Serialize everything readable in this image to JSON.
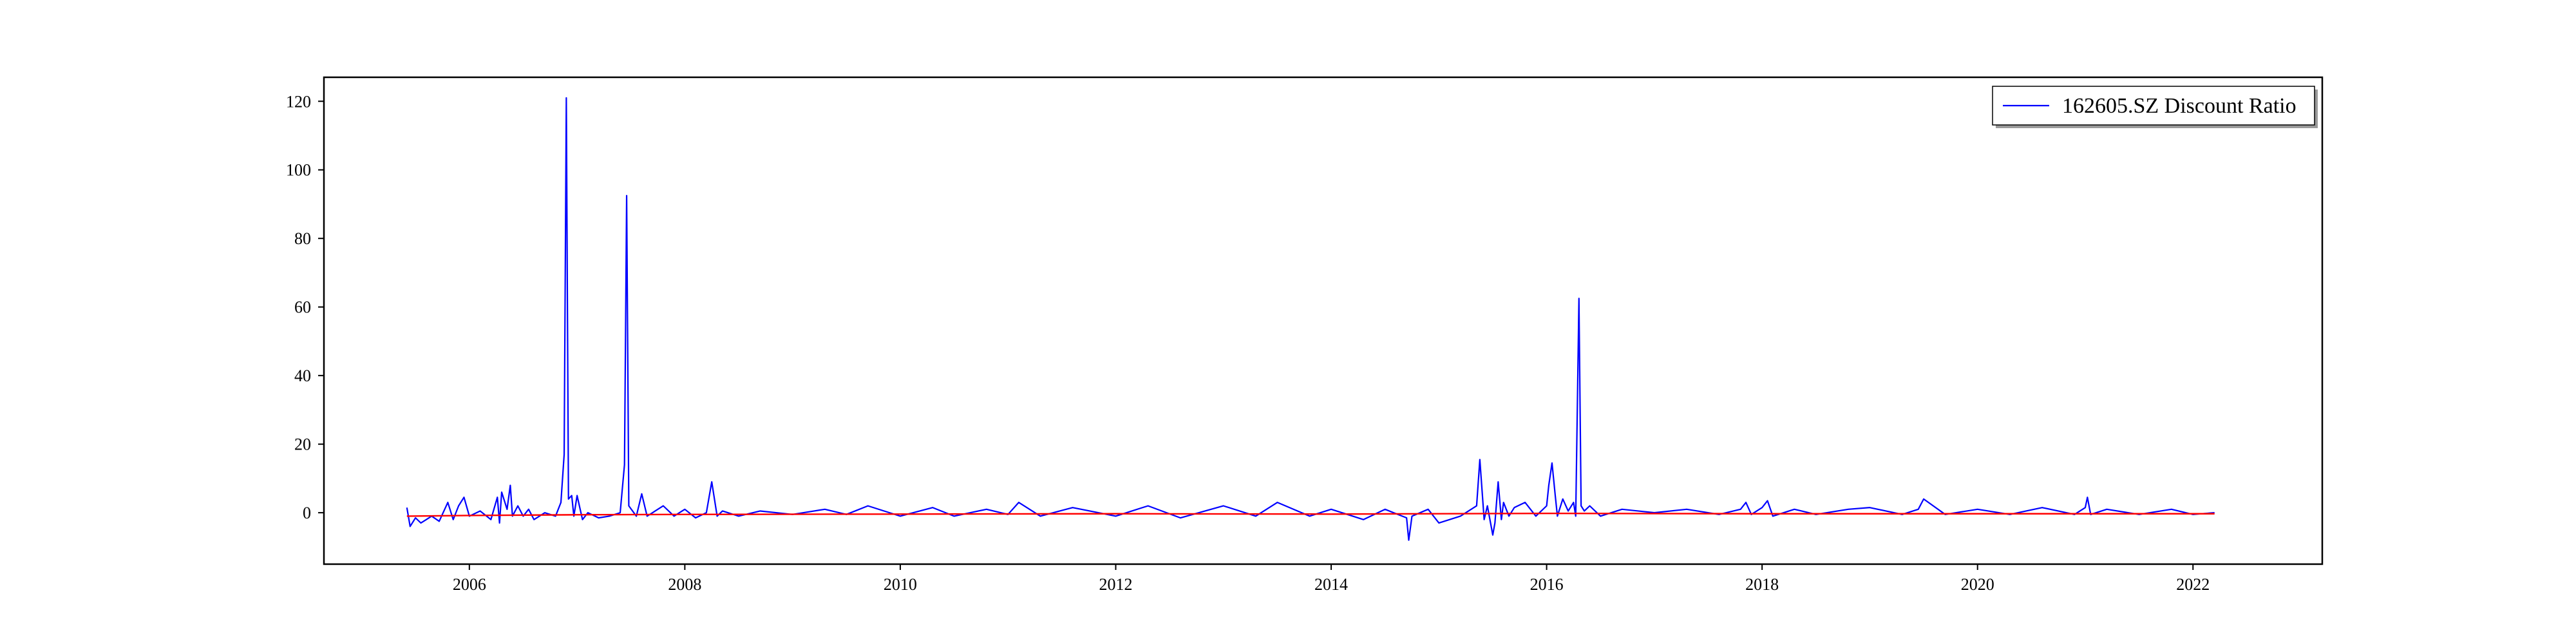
{
  "chart_data": {
    "type": "line",
    "title": "",
    "xlabel": "",
    "ylabel": "",
    "xlim": [
      2004.65,
      2023.2
    ],
    "ylim": [
      -15,
      127
    ],
    "x_ticks": [
      "2006",
      "2008",
      "2010",
      "2012",
      "2014",
      "2016",
      "2018",
      "2020",
      "2022"
    ],
    "y_ticks": [
      "0",
      "20",
      "40",
      "60",
      "80",
      "100",
      "120"
    ],
    "grid": false,
    "legend": {
      "placement": "top-right",
      "entries": [
        "162605.SZ Discount Ratio"
      ]
    },
    "series": [
      {
        "name": "162605.SZ Discount Ratio",
        "color": "#0000ff",
        "x": [
          2005.42,
          2005.45,
          2005.5,
          2005.55,
          2005.6,
          2005.65,
          2005.72,
          2005.8,
          2005.85,
          2005.9,
          2005.95,
          2006.0,
          2006.1,
          2006.2,
          2006.26,
          2006.28,
          2006.3,
          2006.35,
          2006.38,
          2006.4,
          2006.45,
          2006.5,
          2006.55,
          2006.6,
          2006.7,
          2006.8,
          2006.85,
          2006.88,
          2006.9,
          2006.92,
          2006.95,
          2006.97,
          2007.0,
          2007.05,
          2007.1,
          2007.2,
          2007.3,
          2007.4,
          2007.44,
          2007.46,
          2007.48,
          2007.55,
          2007.6,
          2007.65,
          2007.7,
          2007.8,
          2007.9,
          2008.0,
          2008.1,
          2008.2,
          2008.25,
          2008.3,
          2008.35,
          2008.5,
          2008.7,
          2009.0,
          2009.3,
          2009.5,
          2009.7,
          2010.0,
          2010.3,
          2010.5,
          2010.8,
          2011.0,
          2011.1,
          2011.3,
          2011.6,
          2012.0,
          2012.3,
          2012.6,
          2013.0,
          2013.3,
          2013.5,
          2013.8,
          2014.0,
          2014.3,
          2014.5,
          2014.7,
          2014.72,
          2014.75,
          2014.9,
          2015.0,
          2015.2,
          2015.35,
          2015.38,
          2015.42,
          2015.45,
          2015.5,
          2015.52,
          2015.55,
          2015.58,
          2015.6,
          2015.65,
          2015.7,
          2015.8,
          2015.9,
          2016.0,
          2016.02,
          2016.05,
          2016.08,
          2016.1,
          2016.15,
          2016.2,
          2016.25,
          2016.27,
          2016.3,
          2016.32,
          2016.35,
          2016.4,
          2016.5,
          2016.7,
          2017.0,
          2017.3,
          2017.6,
          2017.8,
          2017.85,
          2017.9,
          2018.0,
          2018.05,
          2018.1,
          2018.3,
          2018.5,
          2018.8,
          2019.0,
          2019.3,
          2019.45,
          2019.5,
          2019.7,
          2020.0,
          2020.3,
          2020.6,
          2020.9,
          2021.0,
          2021.02,
          2021.05,
          2021.2,
          2021.5,
          2021.8,
          2022.0,
          2022.2
        ],
        "values": [
          1.5,
          -4.0,
          -1.5,
          -3.0,
          -2.0,
          -1.0,
          -2.5,
          3.0,
          -2.0,
          2.0,
          4.5,
          -1.0,
          0.5,
          -2.0,
          4.5,
          -3.0,
          6.0,
          1.0,
          8.0,
          -1.0,
          2.0,
          -1.0,
          1.0,
          -2.0,
          0.0,
          -1.0,
          3.0,
          17.0,
          121.0,
          4.0,
          5.0,
          -1.0,
          5.0,
          -2.0,
          0.0,
          -1.5,
          -1.0,
          0.0,
          14.0,
          92.5,
          2.0,
          -1.0,
          5.5,
          -1.0,
          0.0,
          2.0,
          -1.0,
          1.0,
          -1.5,
          0.0,
          9.0,
          -1.0,
          0.5,
          -1.0,
          0.5,
          -0.5,
          1.0,
          -0.5,
          2.0,
          -1.0,
          1.5,
          -1.0,
          1.0,
          -0.5,
          3.0,
          -1.0,
          1.5,
          -1.0,
          2.0,
          -1.5,
          2.0,
          -1.0,
          3.0,
          -1.0,
          1.0,
          -2.0,
          1.0,
          -1.5,
          -8.0,
          -1.0,
          1.0,
          -3.0,
          -1.0,
          2.0,
          15.5,
          -2.0,
          2.0,
          -6.5,
          -3.0,
          9.0,
          -2.0,
          3.0,
          -1.0,
          1.5,
          3.0,
          -1.0,
          2.0,
          8.0,
          14.5,
          5.0,
          -1.0,
          4.0,
          0.5,
          3.0,
          -1.0,
          62.5,
          2.0,
          0.5,
          2.0,
          -1.0,
          1.0,
          0.0,
          1.0,
          -0.5,
          1.0,
          3.0,
          -0.5,
          1.5,
          3.5,
          -1.0,
          1.0,
          -0.5,
          1.0,
          1.5,
          -0.5,
          1.0,
          4.0,
          -0.5,
          1.0,
          -0.5,
          1.5,
          -0.5,
          1.5,
          4.5,
          -0.5,
          1.0,
          -0.5,
          1.0,
          -0.5,
          0.0
        ]
      },
      {
        "name": "",
        "color": "#ff0000",
        "x": [
          2005.42,
          2006.0,
          2007.0,
          2008.0,
          2010.0,
          2012.0,
          2014.0,
          2016.0,
          2018.0,
          2020.0,
          2022.2
        ],
        "values": [
          -1.0,
          -0.8,
          -0.6,
          -0.5,
          -0.4,
          -0.3,
          -0.4,
          -0.2,
          -0.3,
          -0.3,
          -0.3
        ]
      }
    ]
  }
}
